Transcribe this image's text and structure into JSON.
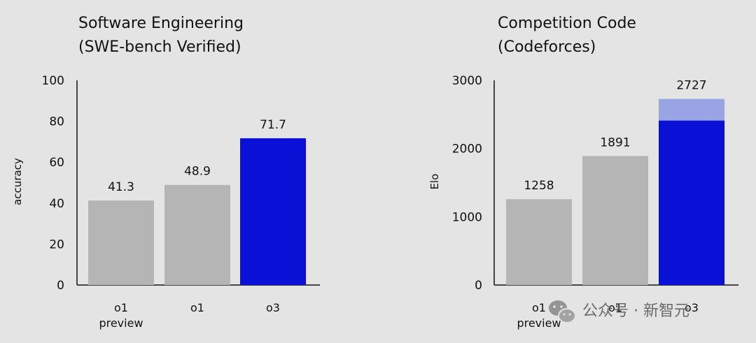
{
  "chart_data": [
    {
      "type": "bar",
      "title_lines": [
        "Software Engineering",
        "(SWE-bench Verified)"
      ],
      "ylabel": "accuracy",
      "ylim": [
        0,
        100
      ],
      "yticks": [
        0,
        20,
        40,
        60,
        80,
        100
      ],
      "categories": [
        [
          "o1",
          "preview"
        ],
        [
          "o1"
        ],
        [
          "o3"
        ]
      ],
      "values": [
        41.3,
        48.9,
        71.7
      ],
      "value_labels": [
        "41.3",
        "48.9",
        "71.7"
      ],
      "colors": [
        "#b5b5b5",
        "#b5b5b5",
        "#0a10d6"
      ]
    },
    {
      "type": "bar",
      "title_lines": [
        "Competition Code",
        "(Codeforces)"
      ],
      "ylabel": "Elo",
      "ylim": [
        0,
        3000
      ],
      "yticks": [
        0,
        1000,
        2000,
        3000
      ],
      "categories": [
        [
          "o1",
          "preview"
        ],
        [
          "o1"
        ],
        [
          "o3"
        ]
      ],
      "values": [
        1258,
        1891,
        2727
      ],
      "value_labels": [
        "1258",
        "1891",
        "2727"
      ],
      "colors": [
        "#b5b5b5",
        "#b5b5b5",
        "#0a10d6"
      ],
      "solid_portion": [
        null,
        null,
        2410
      ],
      "overlay_color": "#9aa3e4"
    }
  ],
  "watermark": {
    "text": "公众号 · 新智元",
    "icon": "wechat-icon"
  }
}
